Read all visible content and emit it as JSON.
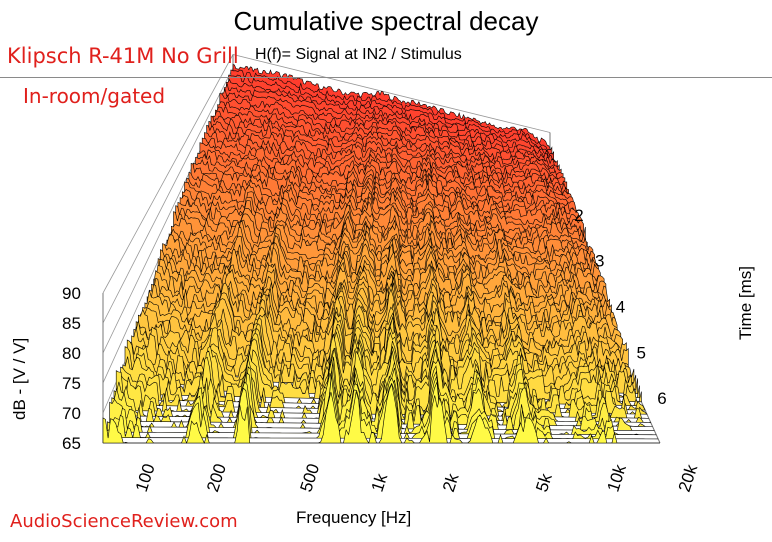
{
  "title": "Cumulative spectral decay",
  "brand_label": "Klipsch R-41M No Grill",
  "subtitle": "H(f)= Signal at IN2 / Stimulus",
  "condition_label": "In-room/gated",
  "watermark": "AudioScienceReview.com",
  "colors": {
    "front": "#ffff44",
    "back": "#ff3b2e",
    "accent_text": "#e0201c"
  },
  "chart_data": {
    "type": "waterfall",
    "title": "Cumulative spectral decay",
    "subtitle": "H(f)= Signal at IN2 / Stimulus",
    "xlabel": "Frequency [Hz]",
    "ylabel": "dB - [V / V]",
    "zlabel": "Time [ms]",
    "x_scale": "log",
    "x_ticks": [
      "100",
      "200",
      "500",
      "1k",
      "2k",
      "5k",
      "10k",
      "20k"
    ],
    "x_tick_values": [
      100,
      200,
      500,
      1000,
      2000,
      5000,
      10000,
      20000
    ],
    "y_ticks": [
      "65",
      "70",
      "75",
      "80",
      "85",
      "90"
    ],
    "y_tick_values": [
      65,
      70,
      75,
      80,
      85,
      90
    ],
    "time_ticks": [
      "2",
      "3",
      "4",
      "5",
      "6"
    ],
    "time_tick_values": [
      2,
      3,
      4,
      5,
      6
    ],
    "ylim": [
      65,
      90
    ],
    "xlim": [
      70,
      20000
    ],
    "time_range_ms": [
      1.7,
      7.0
    ],
    "first_slice_level_db": [
      {
        "x": 100,
        "y": 86
      },
      {
        "x": 150,
        "y": 87
      },
      {
        "x": 200,
        "y": 87
      },
      {
        "x": 300,
        "y": 86
      },
      {
        "x": 500,
        "y": 86
      },
      {
        "x": 700,
        "y": 87
      },
      {
        "x": 1000,
        "y": 89
      },
      {
        "x": 1500,
        "y": 88
      },
      {
        "x": 2000,
        "y": 89
      },
      {
        "x": 3000,
        "y": 88
      },
      {
        "x": 5000,
        "y": 88
      },
      {
        "x": 8000,
        "y": 87
      },
      {
        "x": 12000,
        "y": 89
      },
      {
        "x": 20000,
        "y": 85
      }
    ],
    "grid": true,
    "legend": "none"
  }
}
